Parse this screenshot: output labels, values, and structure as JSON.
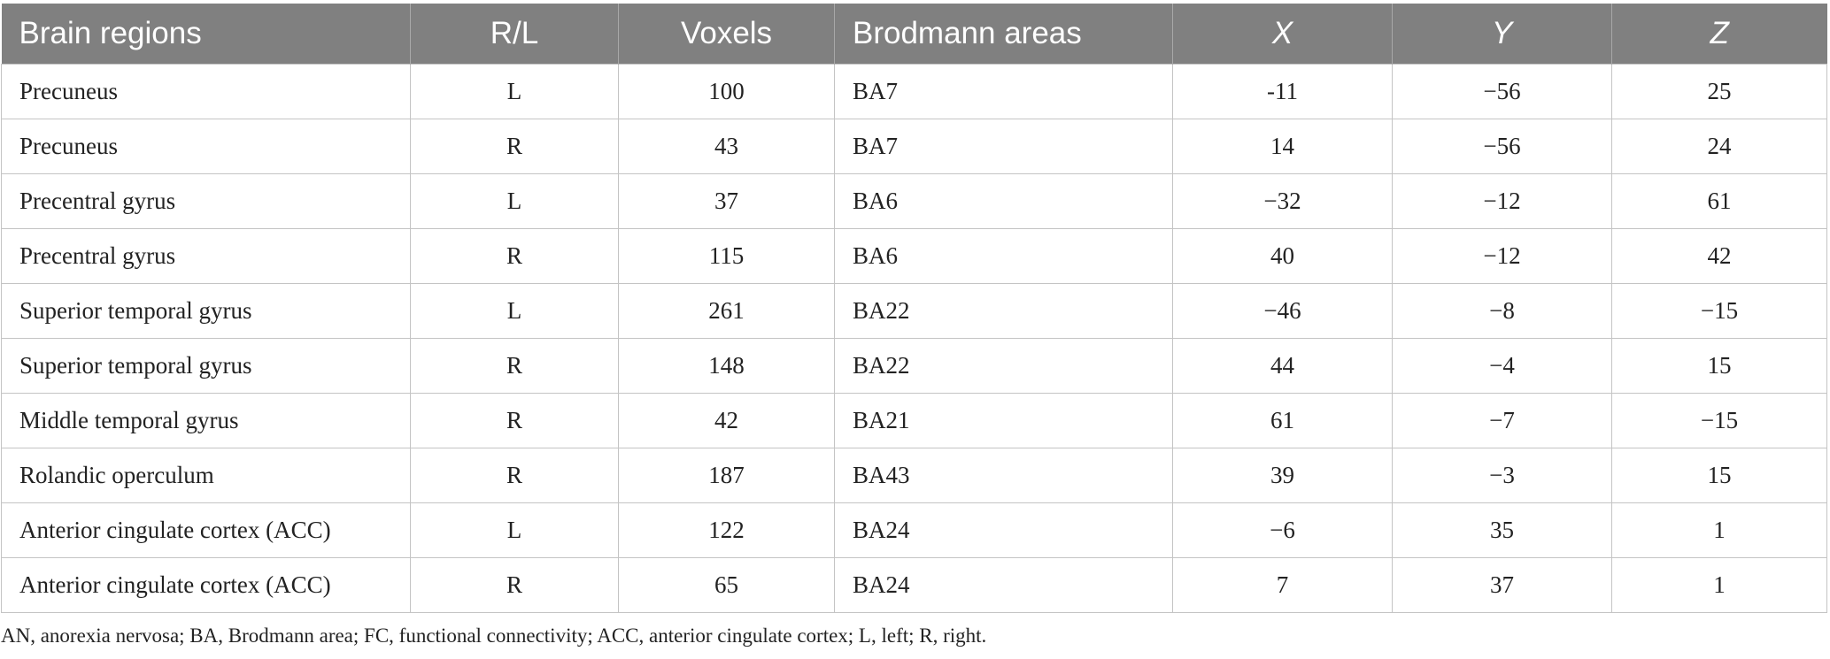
{
  "table": {
    "headers": [
      "Brain regions",
      "R/L",
      "Voxels",
      "Brodmann areas",
      "X",
      "Y",
      "Z"
    ],
    "rows": [
      [
        "Precuneus",
        "L",
        "100",
        "BA7",
        "-11",
        "−56",
        "25"
      ],
      [
        "Precuneus",
        "R",
        "43",
        "BA7",
        "14",
        "−56",
        "24"
      ],
      [
        "Precentral gyrus",
        "L",
        "37",
        "BA6",
        "−32",
        "−12",
        "61"
      ],
      [
        "Precentral gyrus",
        "R",
        "115",
        "BA6",
        "40",
        "−12",
        "42"
      ],
      [
        "Superior temporal gyrus",
        "L",
        "261",
        "BA22",
        "−46",
        "−8",
        "−15"
      ],
      [
        "Superior temporal gyrus",
        "R",
        "148",
        "BA22",
        "44",
        "−4",
        "15"
      ],
      [
        "Middle temporal gyrus",
        "R",
        "42",
        "BA21",
        "61",
        "−7",
        "−15"
      ],
      [
        "Rolandic operculum",
        "R",
        "187",
        "BA43",
        "39",
        "−3",
        "15"
      ],
      [
        "Anterior cingulate cortex (ACC)",
        "L",
        "122",
        "BA24",
        "−6",
        "35",
        "1"
      ],
      [
        "Anterior cingulate cortex (ACC)",
        "R",
        "65",
        "BA24",
        "7",
        "37",
        "1"
      ]
    ]
  },
  "footnote": "AN, anorexia nervosa; BA, Brodmann area; FC, functional connectivity; ACC, anterior cingulate cortex; L, left; R, right.",
  "colors": {
    "header_background": "#808080",
    "header_text": "#ffffff",
    "grid_lines": "#c4c4c4",
    "body_text": "#222222"
  }
}
